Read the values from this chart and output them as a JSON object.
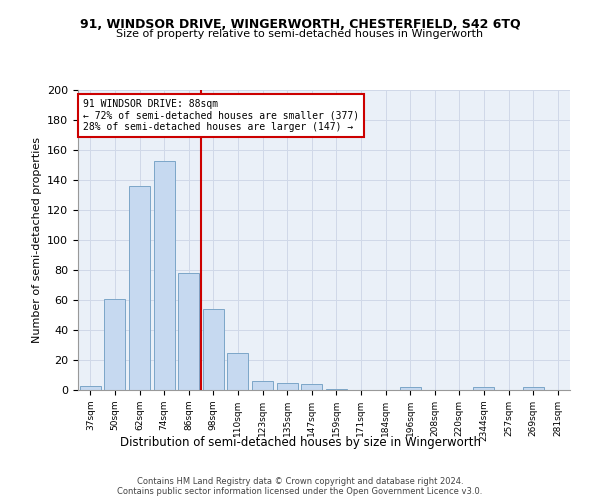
{
  "title": "91, WINDSOR DRIVE, WINGERWORTH, CHESTERFIELD, S42 6TQ",
  "subtitle": "Size of property relative to semi-detached houses in Wingerworth",
  "xlabel": "Distribution of semi-detached houses by size in Wingerworth",
  "ylabel": "Number of semi-detached properties",
  "categories": [
    "37sqm",
    "50sqm",
    "62sqm",
    "74sqm",
    "86sqm",
    "98sqm",
    "110sqm",
    "123sqm",
    "135sqm",
    "147sqm",
    "159sqm",
    "171sqm",
    "184sqm",
    "196sqm",
    "208sqm",
    "220sqm",
    "2344sqm",
    "257sqm",
    "269sqm",
    "281sqm"
  ],
  "values": [
    3,
    61,
    136,
    153,
    78,
    54,
    25,
    6,
    5,
    4,
    1,
    0,
    0,
    2,
    0,
    0,
    2,
    0,
    2,
    0
  ],
  "bar_color": "#c6d9f0",
  "bar_edge_color": "#7ca6c8",
  "property_line_color": "#cc0000",
  "annotation_text": "91 WINDSOR DRIVE: 88sqm\n← 72% of semi-detached houses are smaller (377)\n28% of semi-detached houses are larger (147) →",
  "annotation_box_color": "#ffffff",
  "annotation_box_edge": "#cc0000",
  "ylim": [
    0,
    200
  ],
  "yticks": [
    0,
    20,
    40,
    60,
    80,
    100,
    120,
    140,
    160,
    180,
    200
  ],
  "footer1": "Contains HM Land Registry data © Crown copyright and database right 2024.",
  "footer2": "Contains public sector information licensed under the Open Government Licence v3.0.",
  "grid_color": "#d0d8e8",
  "bg_color": "#eaf0f8"
}
